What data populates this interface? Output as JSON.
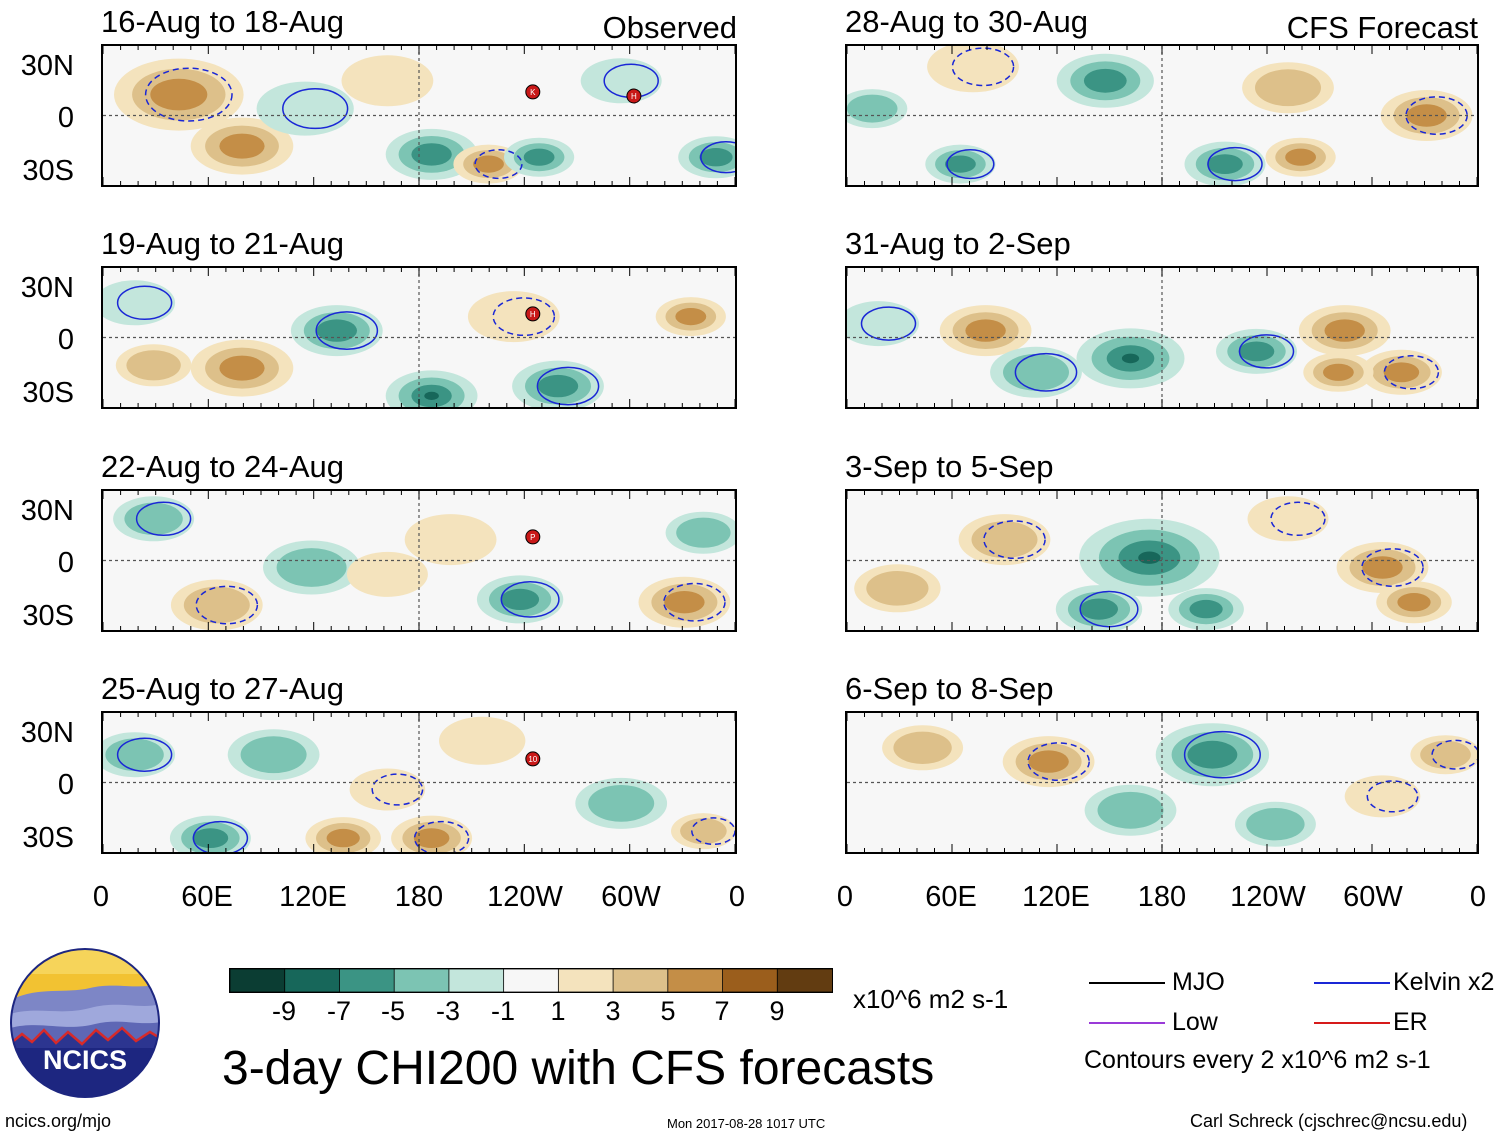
{
  "panels": [
    {
      "title": "16-Aug to 18-Aug",
      "right_label": "Observed",
      "storms": [
        "K",
        "H"
      ]
    },
    {
      "title": "19-Aug to 21-Aug",
      "right_label": "",
      "storms": [
        "H"
      ]
    },
    {
      "title": "22-Aug to 24-Aug",
      "right_label": "",
      "storms": [
        "P"
      ]
    },
    {
      "title": "25-Aug to 27-Aug",
      "right_label": "",
      "storms": [
        "10"
      ]
    },
    {
      "title": "28-Aug to 30-Aug",
      "right_label": "CFS Forecast",
      "storms": []
    },
    {
      "title": "31-Aug to 2-Sep",
      "right_label": "",
      "storms": []
    },
    {
      "title": "3-Sep to 5-Sep",
      "right_label": "",
      "storms": []
    },
    {
      "title": "6-Sep to 8-Sep",
      "right_label": "",
      "storms": []
    }
  ],
  "lat_labels": [
    "30N",
    "0",
    "30S"
  ],
  "lon_labels": [
    "0",
    "60E",
    "120E",
    "180",
    "120W",
    "60W",
    "0"
  ],
  "colorbar": {
    "colors": [
      "#0b3d33",
      "#17675a",
      "#3b9484",
      "#7cc4b3",
      "#c3e6dc",
      "#f7f7f7",
      "#f4e3bd",
      "#ddc08a",
      "#c48e47",
      "#9b5e1c",
      "#623c11"
    ],
    "tick_labels": [
      "-9",
      "-7",
      "-5",
      "-3",
      "-1",
      "1",
      "3",
      "5",
      "7",
      "9"
    ],
    "units": "x10^6 m2 s-1"
  },
  "legend": {
    "items": [
      {
        "label": "MJO",
        "color": "#000000"
      },
      {
        "label": "Kelvin x2",
        "color": "#1a27d6"
      },
      {
        "label": "Low",
        "color": "#9a3ad8"
      },
      {
        "label": "ER",
        "color": "#d61a1a"
      }
    ],
    "contour_note": "Contours every 2 x10^6 m2 s-1"
  },
  "main_title": "3-day CHI200 with CFS forecasts",
  "logo_text": "NCICS",
  "footer": {
    "left": "ncics.org/mjo",
    "center": "Mon 2017-08-28 1017 UTC",
    "right": "Carl Schreck (cjschrec@ncsu.edu)"
  }
}
